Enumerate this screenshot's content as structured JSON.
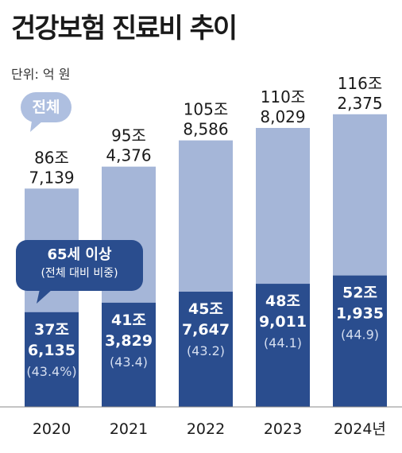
{
  "title": "건강보험 진료비 추이",
  "unit": "단위: 억 원",
  "badge_total": "전체",
  "callout": {
    "line1": "65세 이상",
    "line2": "(전체 대비 비중)"
  },
  "colors": {
    "total": "#a5b6d8",
    "senior": "#2a4d8e",
    "text": "#1a1a1a"
  },
  "chart_data": {
    "type": "bar",
    "stacked": "overlay",
    "categories": [
      "2020",
      "2021",
      "2022",
      "2023",
      "2024년"
    ],
    "series": [
      {
        "name": "전체",
        "values": [
          867139,
          954376,
          1058586,
          1108029,
          1162375
        ],
        "labels": [
          [
            "86조",
            "7,139"
          ],
          [
            "95조",
            "4,376"
          ],
          [
            "105조",
            "8,586"
          ],
          [
            "110조",
            "8,029"
          ],
          [
            "116조",
            "2,375"
          ]
        ]
      },
      {
        "name": "65세 이상",
        "values": [
          376135,
          413829,
          457647,
          489011,
          521935
        ],
        "labels": [
          [
            "37조",
            "6,135",
            "(43.4%)"
          ],
          [
            "41조",
            "3,829",
            "(43.4)"
          ],
          [
            "45조",
            "7,647",
            "(43.2)"
          ],
          [
            "48조",
            "9,011",
            "(44.1)"
          ],
          [
            "52조",
            "1,935",
            "(44.9)"
          ]
        ],
        "share_pct": [
          43.4,
          43.4,
          43.2,
          44.1,
          44.9
        ]
      }
    ],
    "ylim": [
      0,
      1250000
    ]
  }
}
